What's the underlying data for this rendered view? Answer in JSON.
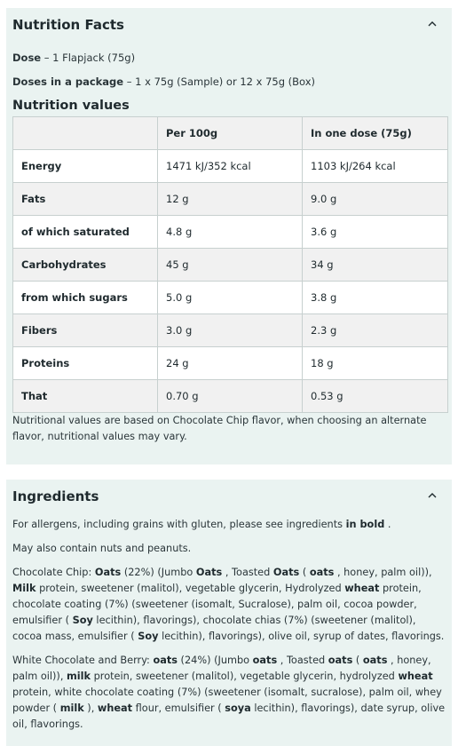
{
  "nutrition": {
    "title": "Nutrition Facts",
    "dose_label": "Dose",
    "dose_value": " – 1 Flapjack (75g)",
    "package_label": "Doses in a package",
    "package_value": " – 1 x 75g (Sample) or 12 x 75g (Box)",
    "values_heading": "Nutrition values",
    "table": {
      "headers": [
        "",
        "Per 100g",
        "In one dose (75g)"
      ],
      "rows": [
        [
          "Energy",
          "1471 kJ/352 kcal",
          "1103 kJ/264 kcal"
        ],
        [
          "Fats",
          "12 g",
          "9.0 g"
        ],
        [
          "of which saturated",
          "4.8 g",
          "3.6 g"
        ],
        [
          "Carbohydrates",
          "45 g",
          "34 g"
        ],
        [
          "from which sugars",
          "5.0 g",
          "3.8 g"
        ],
        [
          "Fibers",
          "3.0 g",
          "2.3 g"
        ],
        [
          "Proteins",
          "24 g",
          "18 g"
        ],
        [
          "That",
          "0.70 g",
          "0.53 g"
        ]
      ]
    },
    "note": "Nutritional values are based on Chocolate Chip flavor, when choosing an alternate flavor, nutritional values may vary."
  },
  "ingredients": {
    "title": "Ingredients",
    "allergen_note": [
      {
        "t": "For allergens, including grains with gluten, please see ingredients "
      },
      {
        "t": "in bold",
        "b": true
      },
      {
        "t": " ."
      }
    ],
    "may_contain": "May also contain nuts and peanuts.",
    "chocolate_chip": [
      {
        "t": "Chocolate Chip: "
      },
      {
        "t": "Oats",
        "b": true
      },
      {
        "t": " (22%) (Jumbo "
      },
      {
        "t": "Oats",
        "b": true
      },
      {
        "t": " , Toasted "
      },
      {
        "t": "Oats",
        "b": true
      },
      {
        "t": " ( "
      },
      {
        "t": "oats",
        "b": true
      },
      {
        "t": " , honey, palm oil)), "
      },
      {
        "t": "Milk",
        "b": true
      },
      {
        "t": " protein, sweetener (malitol), vegetable glycerin, Hydrolyzed "
      },
      {
        "t": "wheat",
        "b": true
      },
      {
        "t": " protein, chocolate coating (7%) (sweetener (isomalt, Sucralose), palm oil, cocoa powder, emulsifier ( "
      },
      {
        "t": "Soy",
        "b": true
      },
      {
        "t": " lecithin), flavorings), chocolate chias (7%) (sweetener (malitol), cocoa mass, emulsifier ( "
      },
      {
        "t": "Soy",
        "b": true
      },
      {
        "t": " lecithin), flavorings), olive oil, syrup of dates, flavorings."
      }
    ],
    "white_chocolate_berry": [
      {
        "t": "White Chocolate and Berry: "
      },
      {
        "t": "oats",
        "b": true
      },
      {
        "t": " (24%) (Jumbo "
      },
      {
        "t": "oats",
        "b": true
      },
      {
        "t": " , Toasted "
      },
      {
        "t": "oats",
        "b": true
      },
      {
        "t": " ( "
      },
      {
        "t": "oats",
        "b": true
      },
      {
        "t": " , honey, palm oil)), "
      },
      {
        "t": "milk",
        "b": true
      },
      {
        "t": " protein, sweetener (malitol), vegetable glycerin, hydrolyzed "
      },
      {
        "t": "wheat",
        "b": true
      },
      {
        "t": " protein, white chocolate coating (7%) (sweetener (isomalt, sucralose), palm oil, whey powder ( "
      },
      {
        "t": "milk",
        "b": true
      },
      {
        "t": " ), "
      },
      {
        "t": "wheat",
        "b": true
      },
      {
        "t": " flour, emulsifier ( "
      },
      {
        "t": "soya",
        "b": true
      },
      {
        "t": " lecithin), flavorings), date syrup, olive oil, flavorings."
      }
    ]
  },
  "icons": {
    "collapse": "chevron-up-icon"
  },
  "colors": {
    "panel_bg": "#eaf3f1",
    "row_alt": "#f1f1f1",
    "border": "#c7d0cf",
    "text": "#1f2a2e"
  }
}
